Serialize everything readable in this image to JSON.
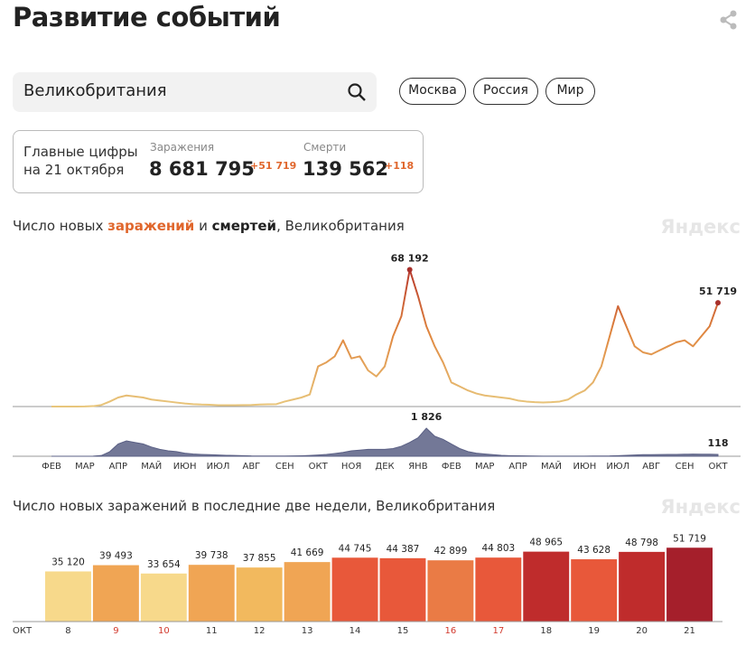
{
  "header": {
    "title": "Развитие событий"
  },
  "search": {
    "value": "Великобритания"
  },
  "filters": [
    "Москва",
    "Россия",
    "Мир"
  ],
  "summary": {
    "label_lines": [
      "Главные цифры",
      "на 21 октября"
    ],
    "items": [
      {
        "label": "Заражения",
        "total": "8 681 795",
        "delta": "+51 719"
      },
      {
        "label": "Смерти",
        "total": "139 562",
        "delta": "+118"
      }
    ]
  },
  "chart_data": [
    {
      "type": "line",
      "title_prefix": "Число новых ",
      "title_join": " и ",
      "title_suffix": ", Великобритания",
      "watermark": "Яндекс",
      "categories": [
        "ФЕВ",
        null,
        null,
        null,
        "МАР",
        null,
        null,
        null,
        "АПР",
        null,
        null,
        null,
        "МАЙ",
        null,
        null,
        null,
        "ИЮН",
        null,
        null,
        null,
        "ИЮЛ",
        null,
        null,
        null,
        "АВГ",
        null,
        null,
        null,
        "СЕН",
        null,
        null,
        null,
        "ОКТ",
        null,
        null,
        null,
        "НОЯ",
        null,
        null,
        null,
        "ДЕК",
        null,
        null,
        null,
        "ЯНВ",
        null,
        null,
        null,
        "ФЕВ",
        null,
        null,
        null,
        "МАР",
        null,
        null,
        null,
        "АПР",
        null,
        null,
        null,
        "МАЙ",
        null,
        null,
        null,
        "ИЮН",
        null,
        null,
        null,
        "ИЮЛ",
        null,
        null,
        null,
        "АВГ",
        null,
        null,
        null,
        "СЕН",
        null,
        null,
        null,
        "ОКТ"
      ],
      "ylim": [
        0,
        72000
      ],
      "y2lim": [
        0,
        2000
      ],
      "series": [
        {
          "name": "заражений",
          "color": "#e07a35",
          "color_scale": [
            "#e8c67c",
            "#e0873f",
            "#b3302a"
          ],
          "values": [
            0,
            0,
            0,
            0,
            50,
            200,
            800,
            2500,
            4500,
            5500,
            5000,
            4500,
            3500,
            3000,
            2500,
            2000,
            1500,
            1200,
            1000,
            900,
            700,
            700,
            650,
            750,
            800,
            1000,
            1100,
            1200,
            2500,
            3500,
            4500,
            6000,
            20000,
            22000,
            25000,
            33000,
            24000,
            25000,
            18000,
            15000,
            20000,
            35000,
            45000,
            68192,
            55000,
            40000,
            30000,
            22000,
            12000,
            10000,
            8000,
            6500,
            5500,
            5000,
            4500,
            4000,
            3000,
            2500,
            2200,
            2000,
            2200,
            2500,
            3500,
            6000,
            8000,
            12000,
            20000,
            35000,
            50000,
            40000,
            30000,
            27000,
            26000,
            28000,
            30000,
            32000,
            33000,
            30000,
            35000,
            40000,
            51719
          ],
          "value_labels": [
            null,
            null,
            null,
            null,
            null,
            null,
            null,
            null,
            null,
            null,
            null,
            null,
            null,
            null,
            null,
            null,
            null,
            null,
            null,
            null,
            null,
            null,
            null,
            null,
            null,
            null,
            null,
            null,
            null,
            null,
            null,
            null,
            null,
            null,
            null,
            null,
            null,
            null,
            null,
            null,
            null,
            null,
            null,
            "68 192",
            null,
            null,
            null,
            null,
            null,
            null,
            null,
            null,
            null,
            null,
            null,
            null,
            null,
            null,
            null,
            null,
            null,
            null,
            null,
            null,
            null,
            null,
            null,
            null,
            null,
            null,
            null,
            null,
            null,
            null,
            null,
            null,
            null,
            null,
            null,
            null,
            "51 719"
          ]
        },
        {
          "name": "смертей",
          "color": "#5b6085",
          "axis": "y2",
          "values": [
            0,
            0,
            0,
            0,
            0,
            5,
            50,
            300,
            800,
            1000,
            900,
            800,
            600,
            450,
            350,
            300,
            200,
            150,
            120,
            100,
            80,
            60,
            50,
            40,
            20,
            15,
            15,
            15,
            15,
            20,
            30,
            50,
            80,
            120,
            180,
            250,
            350,
            400,
            450,
            450,
            450,
            500,
            650,
            900,
            1200,
            1826,
            1300,
            1100,
            800,
            500,
            300,
            200,
            150,
            100,
            60,
            40,
            30,
            20,
            15,
            10,
            8,
            8,
            8,
            8,
            10,
            12,
            15,
            20,
            40,
            60,
            80,
            100,
            100,
            110,
            120,
            120,
            130,
            140,
            130,
            130,
            118
          ],
          "value_labels": [
            null,
            null,
            null,
            null,
            null,
            null,
            null,
            null,
            null,
            null,
            null,
            null,
            null,
            null,
            null,
            null,
            null,
            null,
            null,
            null,
            null,
            null,
            null,
            null,
            null,
            null,
            null,
            null,
            null,
            null,
            null,
            null,
            null,
            null,
            null,
            null,
            null,
            null,
            null,
            null,
            null,
            null,
            null,
            null,
            null,
            "1 826",
            null,
            null,
            null,
            null,
            null,
            null,
            null,
            null,
            null,
            null,
            null,
            null,
            null,
            null,
            null,
            null,
            null,
            null,
            null,
            null,
            null,
            null,
            null,
            null,
            null,
            null,
            null,
            null,
            null,
            null,
            null,
            null,
            null,
            null,
            "118"
          ]
        }
      ]
    },
    {
      "type": "bar",
      "title": "Число новых заражений в последние две недели, Великобритания",
      "watermark": "Яндекс",
      "x_label": "ОКТ",
      "categories": [
        "8",
        "9",
        "10",
        "11",
        "12",
        "13",
        "14",
        "15",
        "16",
        "17",
        "18",
        "19",
        "20",
        "21"
      ],
      "category_colors": [
        "#333333",
        "#d23a2e",
        "#d23a2e",
        "#333333",
        "#333333",
        "#333333",
        "#333333",
        "#333333",
        "#d23a2e",
        "#d23a2e",
        "#333333",
        "#333333",
        "#333333",
        "#333333"
      ],
      "values": [
        35120,
        39493,
        33654,
        39738,
        37855,
        41669,
        44745,
        44387,
        42899,
        44803,
        48965,
        43628,
        48798,
        51719
      ],
      "value_labels": [
        "35 120",
        "39 493",
        "33 654",
        "39 738",
        "37 855",
        "41 669",
        "44 745",
        "44 387",
        "42 899",
        "44 803",
        "48 965",
        "43 628",
        "48 798",
        "51 719"
      ],
      "colors": [
        "#f7d98b",
        "#f0a554",
        "#f7d98b",
        "#f0a554",
        "#f2b95e",
        "#f0a554",
        "#e8583a",
        "#e8583a",
        "#ea7b45",
        "#e8583a",
        "#bf2c2c",
        "#e8583a",
        "#bf2c2c",
        "#a51f2b"
      ],
      "ylim": [
        0,
        62000
      ]
    }
  ]
}
